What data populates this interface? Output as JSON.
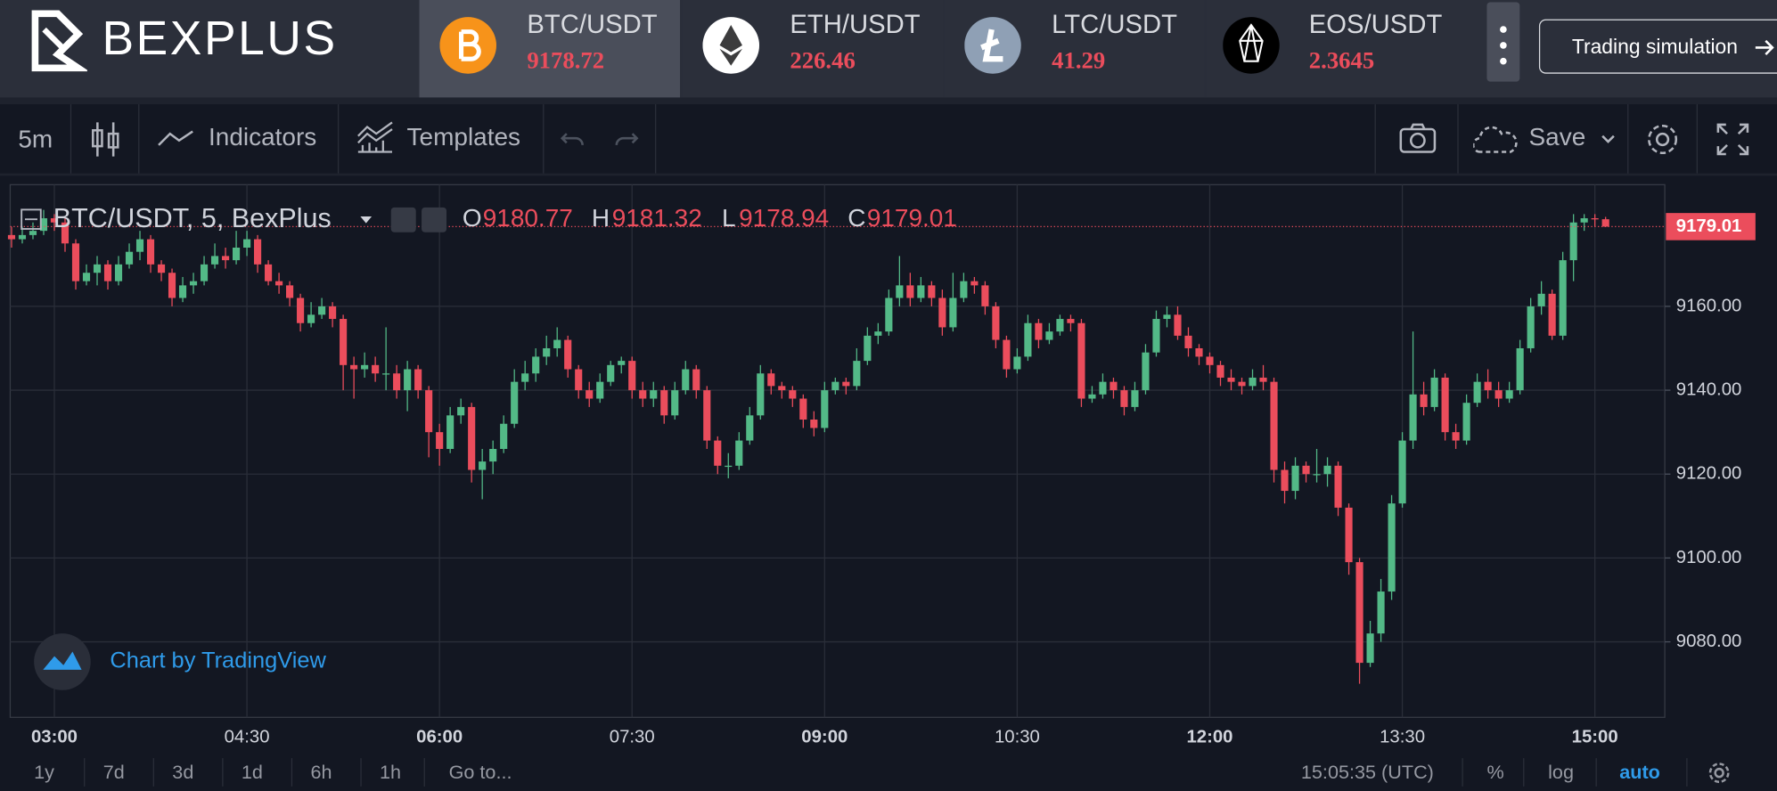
{
  "header": {
    "logo": "BEXPLUS",
    "tickers": [
      {
        "pair": "BTC/USDT",
        "price": 9178.72
      },
      {
        "pair": "ETH/USDT",
        "price": 226.46
      },
      {
        "pair": "LTC/USDT",
        "price": 41.29
      },
      {
        "pair": "EOS/USDT",
        "price": 2.3645
      }
    ],
    "button": "Trading simulation"
  },
  "toolbar": {
    "interval": "5m",
    "indicators": "Indicators",
    "templates": "Templates",
    "save": "Save"
  },
  "chart_data": {
    "type": "candlestick",
    "title": "BTC/USDT, 5, BexPlus",
    "legend_labels": [
      "O",
      "H",
      "L",
      "C"
    ],
    "up_color": "#53b987",
    "down_color": "#eb4d5c",
    "categories": [
      null,
      null,
      null,
      null,
      "03:00",
      null,
      null,
      null,
      null,
      null,
      null,
      null,
      null,
      null,
      null,
      null,
      null,
      null,
      null,
      null,
      null,
      null,
      "04:30",
      null,
      null,
      null,
      null,
      null,
      null,
      null,
      null,
      null,
      null,
      null,
      null,
      null,
      null,
      null,
      null,
      null,
      "06:00",
      null,
      null,
      null,
      null,
      null,
      null,
      null,
      null,
      null,
      null,
      null,
      null,
      null,
      null,
      null,
      null,
      null,
      "07:30",
      null,
      null,
      null,
      null,
      null,
      null,
      null,
      null,
      null,
      null,
      null,
      null,
      null,
      null,
      null,
      null,
      null,
      "09:00",
      null,
      null,
      null,
      null,
      null,
      null,
      null,
      null,
      null,
      null,
      null,
      null,
      null,
      null,
      null,
      null,
      null,
      "10:30",
      null,
      null,
      null,
      null,
      null,
      null,
      null,
      null,
      null,
      null,
      null,
      null,
      null,
      null,
      null,
      null,
      null,
      "12:00",
      null,
      null,
      null,
      null,
      null,
      null,
      null,
      null,
      null,
      null,
      null,
      null,
      null,
      null,
      null,
      null,
      null,
      "13:30",
      null,
      null,
      null,
      null,
      null,
      null,
      null,
      null,
      null,
      null,
      null,
      null,
      null,
      null,
      null,
      null,
      null,
      "15:00",
      null
    ],
    "open": [
      9177,
      9176,
      9177,
      9178,
      9181,
      9180,
      9175,
      9166,
      9168,
      9170,
      9166,
      9170,
      9173,
      9176,
      9170,
      9168,
      9162,
      9165,
      9166,
      9170,
      9172,
      9171,
      9174,
      9176,
      9170,
      9166,
      9165,
      9162,
      9156,
      9158,
      9160,
      9157,
      9146,
      9145,
      9146,
      9144,
      9144,
      9140,
      9145,
      9140,
      9130,
      9126,
      9134,
      9136,
      9121,
      9123,
      9126,
      9132,
      9142,
      9144,
      9148,
      9150,
      9152,
      9145,
      9140,
      9138,
      9142,
      9146,
      9147,
      9140,
      9138,
      9140,
      9134,
      9140,
      9145,
      9140,
      9128,
      9122,
      9122,
      9128,
      9134,
      9144,
      9141,
      9140,
      9138,
      9133,
      9131,
      9140,
      9142,
      9141,
      9147,
      9153,
      9154,
      9162,
      9165,
      9162,
      9165,
      9162,
      9155,
      9162,
      9166,
      9165,
      9160,
      9152,
      9145,
      9148,
      9156,
      9152,
      9154,
      9157,
      9156,
      9138,
      9139,
      9142,
      9140,
      9136,
      9140,
      9149,
      9157,
      9158,
      9153,
      9150,
      9148,
      9146,
      9143,
      9142,
      9141,
      9143,
      9142,
      9121,
      9116,
      9122,
      9120,
      9120,
      9122,
      9112,
      9099,
      9075,
      9082,
      9092,
      9113,
      9128,
      9139,
      9136,
      9143,
      9130,
      9128,
      9137,
      9142,
      9140,
      9138,
      9140,
      9150,
      9160,
      9163,
      9153,
      9171,
      9180,
      9181,
      9180.77
    ],
    "high": [
      9179,
      9179,
      9180,
      9183,
      9182,
      9181,
      9176,
      9170,
      9172,
      9171,
      9172,
      9175,
      9178,
      9177,
      9171,
      9169,
      9167,
      9168,
      9172,
      9175,
      9174,
      9178,
      9178,
      9177,
      9171,
      9168,
      9166,
      9163,
      9161,
      9162,
      9161,
      9158,
      9148,
      9149,
      9148,
      9155,
      9146,
      9147,
      9146,
      9141,
      9132,
      9136,
      9138,
      9137,
      9126,
      9128,
      9134,
      9145,
      9147,
      9150,
      9153,
      9155,
      9153,
      9146,
      9142,
      9144,
      9147,
      9148,
      9148,
      9142,
      9142,
      9141,
      9142,
      9147,
      9146,
      9141,
      9129,
      9125,
      9130,
      9136,
      9146,
      9145,
      9142,
      9141,
      9139,
      9135,
      9142,
      9143,
      9143,
      9150,
      9155,
      9156,
      9164,
      9172,
      9168,
      9167,
      9166,
      9164,
      9168,
      9168,
      9167,
      9166,
      9161,
      9153,
      9150,
      9158,
      9157,
      9156,
      9158,
      9158,
      9157,
      9141,
      9144,
      9143,
      9141,
      9142,
      9151,
      9159,
      9160,
      9160,
      9155,
      9151,
      9149,
      9147,
      9145,
      9143,
      9145,
      9146,
      9143,
      9123,
      9124,
      9123,
      9126,
      9124,
      9123,
      9113,
      9100,
      9085,
      9095,
      9115,
      9130,
      9154,
      9142,
      9145,
      9144,
      9132,
      9139,
      9144,
      9145,
      9142,
      9142,
      9152,
      9162,
      9166,
      9164,
      9173,
      9182,
      9182,
      9182,
      9181.32
    ],
    "low": [
      9174,
      9175,
      9176,
      9177,
      9178,
      9173,
      9164,
      9165,
      9165,
      9164,
      9165,
      9169,
      9171,
      9168,
      9166,
      9160,
      9161,
      9163,
      9165,
      9169,
      9169,
      9170,
      9172,
      9168,
      9165,
      9163,
      9160,
      9154,
      9155,
      9157,
      9155,
      9140,
      9138,
      9143,
      9142,
      9140,
      9138,
      9135,
      9138,
      9124,
      9122,
      9125,
      9132,
      9118,
      9114,
      9120,
      9125,
      9131,
      9140,
      9142,
      9146,
      9148,
      9143,
      9138,
      9136,
      9137,
      9141,
      9144,
      9138,
      9136,
      9136,
      9132,
      9133,
      9139,
      9138,
      9126,
      9120,
      9119,
      9121,
      9127,
      9133,
      9139,
      9138,
      9136,
      9131,
      9129,
      9130,
      9139,
      9139,
      9140,
      9146,
      9151,
      9153,
      9160,
      9160,
      9161,
      9160,
      9153,
      9154,
      9161,
      9163,
      9158,
      9150,
      9143,
      9144,
      9147,
      9150,
      9151,
      9153,
      9154,
      9136,
      9137,
      9138,
      9138,
      9134,
      9135,
      9139,
      9148,
      9155,
      9152,
      9148,
      9146,
      9144,
      9141,
      9140,
      9139,
      9140,
      9140,
      9118,
      9113,
      9114,
      9118,
      9118,
      9117,
      9110,
      9096,
      9070,
      9074,
      9080,
      9090,
      9112,
      9126,
      9134,
      9135,
      9128,
      9126,
      9127,
      9136,
      9138,
      9136,
      9137,
      9139,
      9149,
      9158,
      9152,
      9152,
      9166,
      9178,
      9179,
      9178.94
    ],
    "close": [
      9176,
      9177,
      9178,
      9181,
      9180,
      9175,
      9166,
      9168,
      9170,
      9166,
      9170,
      9173,
      9176,
      9170,
      9168,
      9162,
      9165,
      9166,
      9170,
      9172,
      9171,
      9174,
      9176,
      9170,
      9166,
      9165,
      9162,
      9156,
      9158,
      9160,
      9157,
      9146,
      9145,
      9146,
      9144,
      9144,
      9140,
      9145,
      9140,
      9130,
      9126,
      9134,
      9136,
      9121,
      9123,
      9126,
      9132,
      9142,
      9144,
      9148,
      9150,
      9152,
      9145,
      9140,
      9138,
      9142,
      9146,
      9147,
      9140,
      9138,
      9140,
      9134,
      9140,
      9145,
      9140,
      9128,
      9122,
      9122,
      9128,
      9134,
      9144,
      9141,
      9140,
      9138,
      9133,
      9131,
      9140,
      9142,
      9141,
      9147,
      9153,
      9154,
      9162,
      9165,
      9162,
      9165,
      9162,
      9155,
      9162,
      9166,
      9165,
      9160,
      9152,
      9145,
      9148,
      9156,
      9152,
      9154,
      9157,
      9156,
      9138,
      9139,
      9142,
      9140,
      9136,
      9140,
      9149,
      9157,
      9158,
      9153,
      9150,
      9148,
      9146,
      9143,
      9142,
      9141,
      9143,
      9142,
      9121,
      9116,
      9122,
      9120,
      9120,
      9122,
      9112,
      9099,
      9075,
      9082,
      9092,
      9113,
      9128,
      9139,
      9136,
      9143,
      9130,
      9128,
      9137,
      9142,
      9140,
      9138,
      9140,
      9150,
      9160,
      9163,
      9153,
      9171,
      9180,
      9181,
      9180.77,
      9179.01
    ],
    "ylim": [
      9062,
      9189
    ],
    "yticks": [
      {
        "value": 9080,
        "label": "9080.00"
      },
      {
        "value": 9100,
        "label": "9100.00"
      },
      {
        "value": 9120,
        "label": "9120.00"
      },
      {
        "value": 9140,
        "label": "9140.00"
      },
      {
        "value": 9160,
        "label": "9160.00"
      }
    ],
    "grid": true,
    "axis_side": "right"
  },
  "watermark": "Chart by TradingView",
  "footer": {
    "ranges": [
      "1y",
      "7d",
      "3d",
      "1d",
      "6h",
      "1h"
    ],
    "goto": "Go to...",
    "time": "15:05:35 (UTC)",
    "percent": "%",
    "log": "log",
    "auto": "auto"
  }
}
